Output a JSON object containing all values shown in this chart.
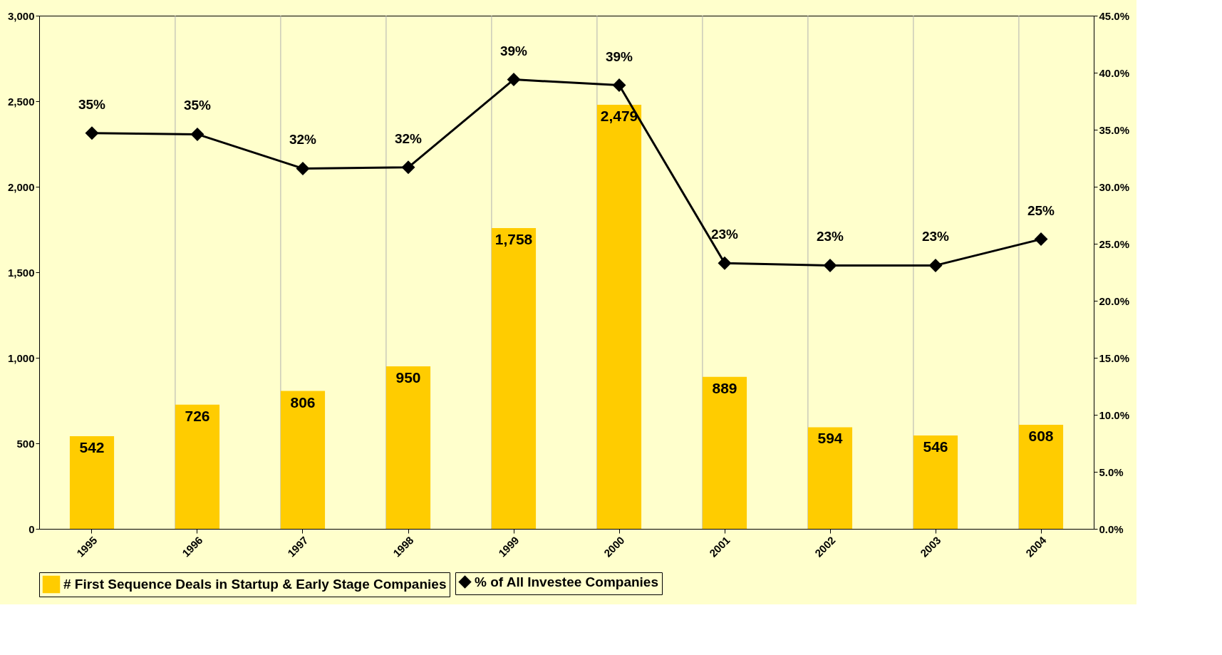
{
  "chart_data": {
    "type": "bar",
    "categories": [
      "1995",
      "1996",
      "1997",
      "1998",
      "1999",
      "2000",
      "2001",
      "2002",
      "2003",
      "2004"
    ],
    "series": [
      {
        "name": "# First Sequence Deals in Startup & Early Stage Companies",
        "color": "#ffcc00",
        "values": [
          542,
          726,
          806,
          950,
          1758,
          2479,
          889,
          594,
          546,
          608
        ],
        "value_labels": [
          "542",
          "726",
          "806",
          "950",
          "1,758",
          "2,479",
          "889",
          "594",
          "546",
          "608"
        ]
      },
      {
        "name": "% of All Investee Companies",
        "type": "line",
        "axis": "y2",
        "color": "#000000",
        "marker": "diamond",
        "values": [
          34.7,
          34.6,
          31.6,
          31.7,
          39.4,
          38.9,
          23.3,
          23.1,
          23.1,
          25.4
        ],
        "value_labels": [
          "35%",
          "35%",
          "32%",
          "32%",
          "39%",
          "39%",
          "23%",
          "23%",
          "23%",
          "25%"
        ]
      }
    ],
    "ylim": [
      0,
      3000
    ],
    "yticks": [
      {
        "value": 0,
        "label": "0"
      },
      {
        "value": 500,
        "label": "500"
      },
      {
        "value": 1000,
        "label": "1,000"
      },
      {
        "value": 1500,
        "label": "1,500"
      },
      {
        "value": 2000,
        "label": "2,000"
      },
      {
        "value": 2500,
        "label": "2,500"
      },
      {
        "value": 3000,
        "label": "3,000"
      }
    ],
    "y2lim": [
      0,
      45
    ],
    "y2ticks": [
      {
        "value": 0,
        "label": "0.0%"
      },
      {
        "value": 5,
        "label": "5.0%"
      },
      {
        "value": 10,
        "label": "10.0%"
      },
      {
        "value": 15,
        "label": "15.0%"
      },
      {
        "value": 20,
        "label": "20.0%"
      },
      {
        "value": 25,
        "label": "25.0%"
      },
      {
        "value": 30,
        "label": "30.0%"
      },
      {
        "value": 35,
        "label": "35.0%"
      },
      {
        "value": 40,
        "label": "40.0%"
      },
      {
        "value": 45,
        "label": "45.0%"
      }
    ],
    "grid": "x",
    "legend": "bottom"
  }
}
